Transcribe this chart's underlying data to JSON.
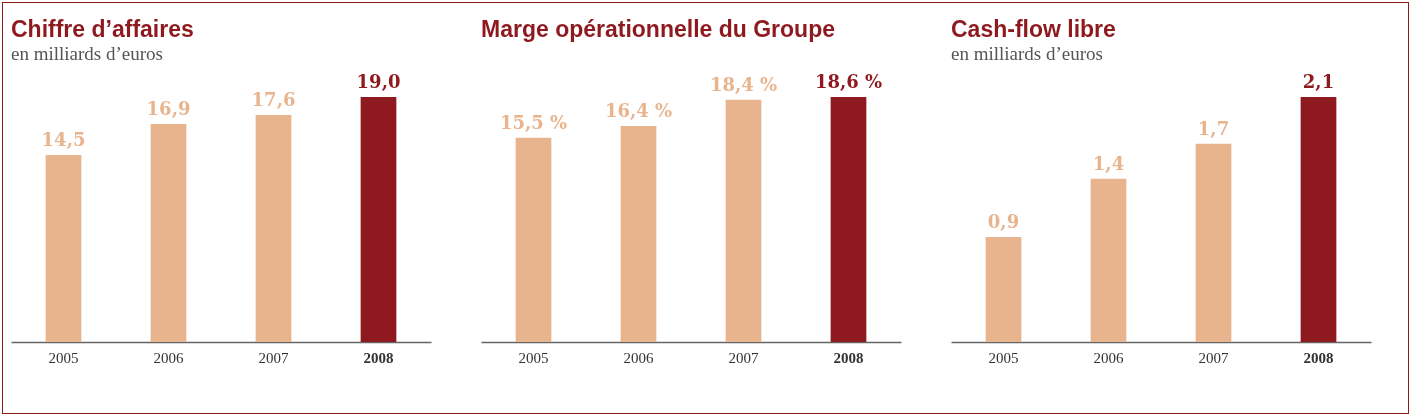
{
  "chart_data": [
    {
      "type": "bar",
      "title": "Chiffre d’affaires",
      "subtitle": "en milliards d’euros",
      "categories": [
        "2005",
        "2006",
        "2007",
        "2008"
      ],
      "values": [
        14.5,
        16.9,
        17.6,
        19.0
      ],
      "value_labels": [
        "14,5",
        "16,9",
        "17,6",
        "19,0"
      ],
      "colors": [
        "#e8b48e",
        "#e8b48e",
        "#e8b48e",
        "#8e1a1f"
      ]
    },
    {
      "type": "bar",
      "title": "Marge opérationnelle du Groupe",
      "categories": [
        "2005",
        "2006",
        "2007",
        "2008"
      ],
      "values": [
        15.5,
        16.4,
        18.4,
        18.6
      ],
      "value_labels": [
        "15,5 %",
        "16,4 %",
        "18,4 %",
        "18,6 %"
      ],
      "colors": [
        "#e8b48e",
        "#e8b48e",
        "#e8b48e",
        "#8e1a1f"
      ]
    },
    {
      "type": "bar",
      "title": "Cash-flow libre",
      "subtitle": "en milliards d’euros",
      "categories": [
        "2005",
        "2006",
        "2007",
        "2008"
      ],
      "values": [
        0.9,
        1.4,
        1.7,
        2.1
      ],
      "value_labels": [
        "0,9",
        "1,4",
        "1,7",
        "2,1"
      ],
      "colors": [
        "#e8b48e",
        "#e8b48e",
        "#e8b48e",
        "#8e1a1f"
      ]
    }
  ]
}
